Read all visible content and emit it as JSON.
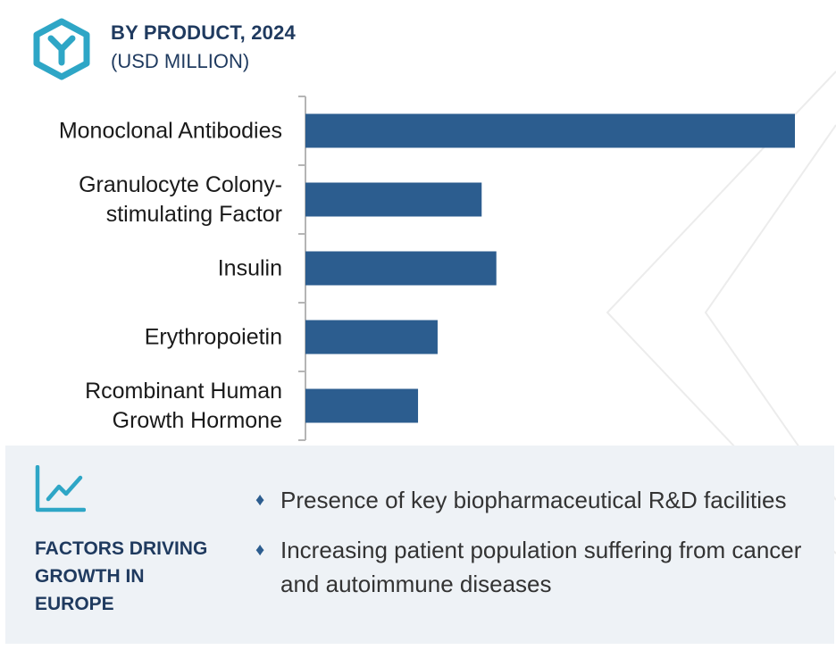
{
  "header": {
    "title": "BY PRODUCT, 2024",
    "subtitle": "(USD MILLION)",
    "logo_icon": "y-hexagon-icon"
  },
  "colors": {
    "bar": "#2c5d8f",
    "accent": "#2ea6c6",
    "title": "#1f3a5f",
    "panel_bg": "#eef2f6"
  },
  "chart_data": {
    "type": "bar",
    "orientation": "horizontal",
    "categories": [
      [
        "Monoclonal Antibodies"
      ],
      [
        "Granulocyte Colony-",
        "stimulating Factor"
      ],
      [
        "Insulin"
      ],
      [
        "Erythropoietin"
      ],
      [
        "Rcombinant Human",
        "Growth Hormone"
      ]
    ],
    "values": [
      100,
      36,
      39,
      27,
      23
    ],
    "value_axis_visible": false,
    "grid": false
  },
  "factors": {
    "icon": "trend-line-chart-icon",
    "title_lines": [
      "FACTORS DRIVING",
      "GROWTH IN",
      "EUROPE"
    ],
    "bullets": [
      "Presence of key biopharmaceutical R&D facilities",
      "Increasing patient population suffering from cancer and autoimmune diseases"
    ]
  }
}
